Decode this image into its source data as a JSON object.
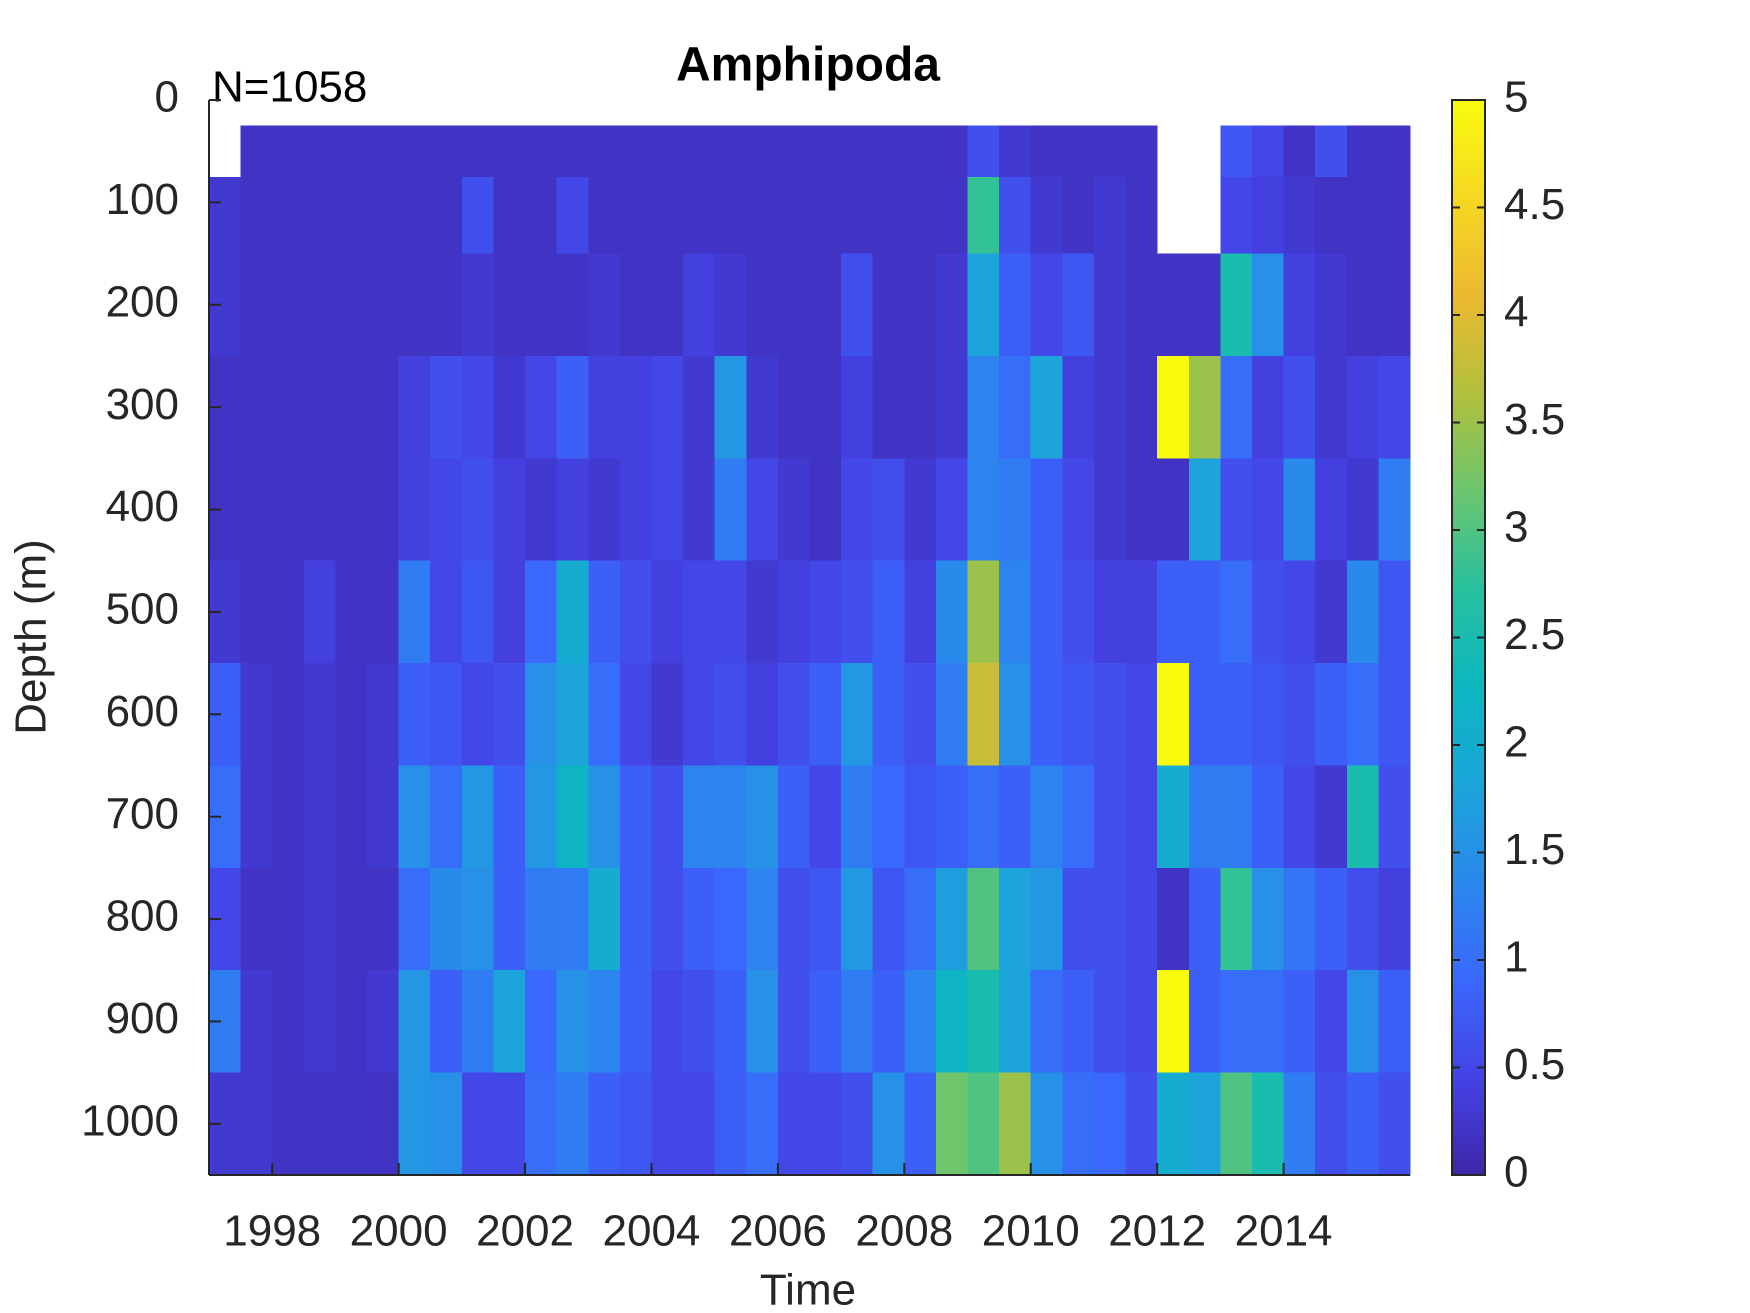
{
  "chart_data": {
    "type": "heatmap",
    "title": "Amphipoda",
    "annotation": "N=1058",
    "xlabel": "Time",
    "ylabel": "Depth (m)",
    "x_bins": [
      1997,
      1997.5,
      1998,
      1998.5,
      1999,
      1999.5,
      2000,
      2000.5,
      2001,
      2001.5,
      2002,
      2002.5,
      2003,
      2003.5,
      2004,
      2004.5,
      2005,
      2005.5,
      2006,
      2006.5,
      2007,
      2007.5,
      2008,
      2008.5,
      2009,
      2009.5,
      2010,
      2010.5,
      2011,
      2011.5,
      2012,
      2012.5,
      2013,
      2013.5,
      2014,
      2014.5,
      2015,
      2015.5,
      2016
    ],
    "y_bins": [
      25,
      75,
      150,
      250,
      350,
      450,
      550,
      650,
      750,
      850,
      950,
      1050
    ],
    "z": [
      [
        null,
        0.2,
        0.2,
        0.2,
        0.2,
        0.2,
        0.2,
        0.2,
        0.2,
        0.2,
        0.2,
        0.2,
        0.2,
        0.2,
        0.2,
        0.2,
        0.2,
        0.2,
        0.2,
        0.2,
        0.2,
        0.2,
        0.2,
        0.2,
        0.6,
        0.3,
        0.2,
        0.2,
        0.2,
        0.2,
        null,
        null,
        0.7,
        0.5,
        0.2,
        0.6,
        0.2,
        0.2
      ],
      [
        0.3,
        0.2,
        0.2,
        0.2,
        0.2,
        0.2,
        0.2,
        0.2,
        0.6,
        0.2,
        0.2,
        0.5,
        0.2,
        0.2,
        0.2,
        0.2,
        0.2,
        0.2,
        0.2,
        0.2,
        0.2,
        0.2,
        0.2,
        0.2,
        2.8,
        0.6,
        0.3,
        0.2,
        0.3,
        0.2,
        null,
        null,
        0.5,
        0.4,
        0.3,
        0.2,
        0.2,
        0.2
      ],
      [
        0.3,
        0.2,
        0.2,
        0.2,
        0.2,
        0.2,
        0.2,
        0.2,
        0.3,
        0.2,
        0.2,
        0.2,
        0.3,
        0.2,
        0.2,
        0.4,
        0.3,
        0.2,
        0.2,
        0.2,
        0.6,
        0.2,
        0.2,
        0.3,
        1.8,
        0.8,
        0.5,
        0.7,
        0.3,
        0.2,
        0.2,
        0.2,
        2.5,
        1.5,
        0.4,
        0.3,
        0.2,
        0.2
      ],
      [
        0.2,
        0.2,
        0.2,
        0.2,
        0.2,
        0.2,
        0.4,
        0.6,
        0.5,
        0.3,
        0.5,
        0.8,
        0.4,
        0.4,
        0.5,
        0.3,
        1.6,
        0.3,
        0.2,
        0.2,
        0.4,
        0.2,
        0.2,
        0.3,
        1.3,
        1.0,
        1.8,
        0.4,
        0.3,
        0.2,
        5.0,
        3.5,
        1.0,
        0.4,
        0.6,
        0.3,
        0.4,
        0.5
      ],
      [
        0.2,
        0.2,
        0.2,
        0.2,
        0.2,
        0.2,
        0.4,
        0.5,
        0.6,
        0.4,
        0.3,
        0.4,
        0.3,
        0.4,
        0.5,
        0.3,
        1.2,
        0.5,
        0.3,
        0.2,
        0.5,
        0.6,
        0.3,
        0.5,
        1.3,
        1.2,
        0.8,
        0.5,
        0.3,
        0.2,
        0.2,
        1.8,
        0.6,
        0.5,
        1.4,
        0.4,
        0.3,
        1.2
      ],
      [
        0.3,
        0.2,
        0.2,
        0.4,
        0.2,
        0.2,
        1.2,
        0.5,
        0.7,
        0.4,
        0.9,
        2.0,
        0.8,
        0.6,
        0.4,
        0.5,
        0.5,
        0.3,
        0.4,
        0.5,
        0.6,
        0.8,
        0.4,
        1.4,
        3.5,
        1.3,
        0.8,
        0.6,
        0.4,
        0.4,
        0.8,
        0.8,
        1.0,
        0.6,
        0.5,
        0.3,
        1.4,
        0.7
      ],
      [
        0.8,
        0.3,
        0.2,
        0.3,
        0.2,
        0.3,
        0.8,
        0.7,
        0.5,
        0.6,
        1.5,
        1.8,
        1.0,
        0.5,
        0.3,
        0.5,
        0.6,
        0.4,
        0.6,
        0.8,
        1.6,
        0.8,
        0.6,
        1.2,
        3.8,
        1.5,
        0.8,
        0.7,
        0.6,
        0.5,
        5.0,
        0.8,
        0.8,
        0.7,
        0.6,
        0.8,
        1.0,
        0.7
      ],
      [
        1.0,
        0.3,
        0.2,
        0.3,
        0.2,
        0.3,
        1.5,
        1.0,
        1.6,
        0.8,
        1.6,
        2.2,
        1.5,
        0.8,
        0.6,
        1.3,
        1.3,
        1.5,
        0.8,
        0.5,
        1.2,
        0.9,
        0.7,
        0.8,
        1.0,
        0.8,
        1.3,
        1.0,
        0.6,
        0.5,
        2.0,
        1.2,
        1.2,
        0.8,
        0.5,
        0.3,
        2.5,
        0.6
      ],
      [
        0.5,
        0.2,
        0.2,
        0.3,
        0.2,
        0.2,
        1.0,
        1.4,
        1.5,
        0.8,
        1.2,
        1.2,
        2.0,
        0.8,
        0.6,
        0.8,
        0.9,
        1.3,
        0.6,
        0.7,
        1.6,
        0.7,
        1.0,
        1.7,
        3.0,
        1.8,
        1.6,
        0.6,
        0.6,
        0.5,
        0.2,
        0.8,
        2.8,
        1.5,
        1.1,
        0.8,
        0.6,
        0.4
      ],
      [
        1.2,
        0.3,
        0.2,
        0.3,
        0.2,
        0.3,
        1.6,
        0.8,
        1.2,
        1.8,
        0.9,
        1.5,
        1.3,
        0.8,
        0.5,
        0.6,
        0.8,
        1.5,
        0.6,
        0.8,
        1.2,
        0.8,
        1.3,
        2.2,
        2.5,
        1.8,
        1.0,
        0.8,
        0.6,
        0.5,
        5.0,
        0.8,
        1.0,
        1.0,
        0.8,
        0.5,
        1.5,
        0.8
      ],
      [
        0.3,
        0.3,
        0.2,
        0.2,
        0.2,
        0.2,
        1.6,
        1.5,
        0.5,
        0.5,
        1.0,
        1.2,
        0.8,
        0.7,
        0.5,
        0.5,
        0.8,
        1.0,
        0.5,
        0.5,
        0.6,
        1.5,
        0.8,
        3.2,
        3.0,
        3.5,
        1.5,
        1.0,
        0.9,
        0.6,
        2.0,
        1.8,
        3.0,
        2.5,
        1.2,
        0.6,
        0.8,
        0.6
      ]
    ],
    "xlim": [
      1997,
      2016
    ],
    "xticks": [
      1998,
      2000,
      2002,
      2004,
      2006,
      2008,
      2010,
      2012,
      2014
    ],
    "ylim": [
      0,
      1050
    ],
    "y_reversed": true,
    "yticks": [
      0,
      100,
      200,
      300,
      400,
      500,
      600,
      700,
      800,
      900,
      1000
    ],
    "clim": [
      0,
      5
    ],
    "cticks": [
      0,
      0.5,
      1,
      1.5,
      2,
      2.5,
      3,
      3.5,
      4,
      4.5,
      5
    ],
    "colormap": [
      "#3e26a8",
      "#4443e6",
      "#3a68fc",
      "#2b88ec",
      "#1ba5da",
      "#0cb7c0",
      "#28c09e",
      "#6cc56e",
      "#b2c03c",
      "#ecb931",
      "#f5d822",
      "#f9fb0e"
    ]
  }
}
